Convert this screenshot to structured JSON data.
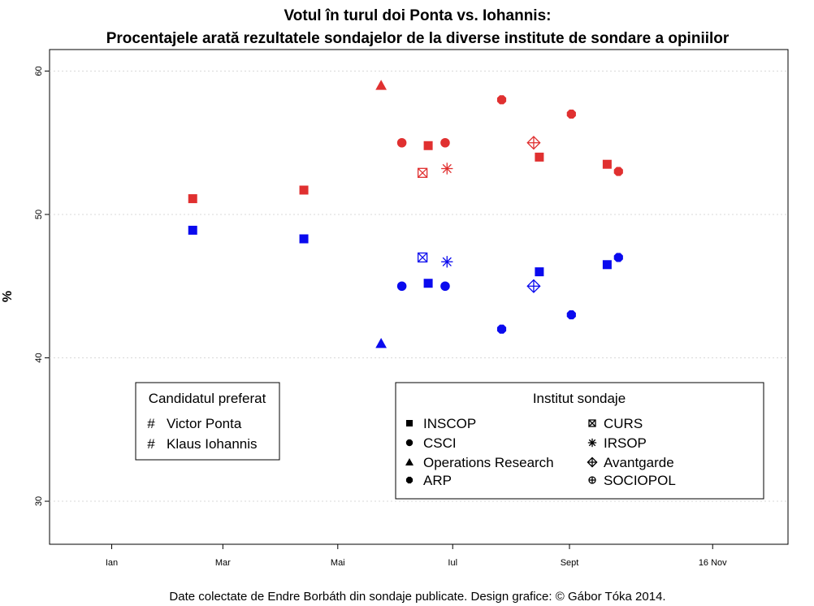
{
  "chart_data": {
    "type": "scatter",
    "title": "Votul în turul doi Ponta vs. Iohannis:",
    "subtitle": "Procentajele arată rezultatele sondajelor de la diverse institute de sondare a opiniilor",
    "ylabel": "%",
    "xlabel": "",
    "caption": "Date colectate de Endre Borbáth din sondaje publicate. Design grafice: © Gábor Tóka 2014.",
    "ylim": [
      27,
      61.5
    ],
    "yticks": [
      30,
      40,
      50,
      60
    ],
    "xlim": [
      "2013-11-29",
      "2014-12-26"
    ],
    "xticks": [
      {
        "label": "Ian",
        "date": "2014-01-01"
      },
      {
        "label": "Mar",
        "date": "2014-03-01"
      },
      {
        "label": "Mai",
        "date": "2014-05-01"
      },
      {
        "label": "Iul",
        "date": "2014-07-01"
      },
      {
        "label": "Sept",
        "date": "2014-09-01"
      },
      {
        "label": "16 Nov",
        "date": "2014-11-16"
      }
    ],
    "grid": "horizontal-dotted",
    "candidates_legend": {
      "title": "Candidatul preferat",
      "position": "bottom-left",
      "entries": [
        {
          "name": "Victor Ponta",
          "color": "#e03030",
          "glyph": "#"
        },
        {
          "name": "Klaus Iohannis",
          "color": "#0a0aee",
          "glyph": "#"
        }
      ]
    },
    "institutes_legend": {
      "title": "Institut sondaje",
      "position": "bottom-right",
      "entries": [
        {
          "name": "INSCOP",
          "shape": "square"
        },
        {
          "name": "CSCI",
          "shape": "circle"
        },
        {
          "name": "Operations Research",
          "shape": "triangle"
        },
        {
          "name": "ARP",
          "shape": "octagon"
        },
        {
          "name": "CURS",
          "shape": "square-x"
        },
        {
          "name": "IRSOP",
          "shape": "asterisk"
        },
        {
          "name": "Avantgarde",
          "shape": "diamond-plus"
        },
        {
          "name": "SOCIOPOL",
          "shape": "circle-plus"
        }
      ]
    },
    "series": [
      {
        "name": "Victor Ponta",
        "color": "#e03030",
        "points": [
          {
            "date": "2014-02-13",
            "value": 51.1,
            "institute": "INSCOP"
          },
          {
            "date": "2014-04-13",
            "value": 51.7,
            "institute": "INSCOP"
          },
          {
            "date": "2014-05-24",
            "value": 59.0,
            "institute": "Operations Research"
          },
          {
            "date": "2014-06-04",
            "value": 55.0,
            "institute": "CSCI"
          },
          {
            "date": "2014-06-15",
            "value": 52.9,
            "institute": "CURS"
          },
          {
            "date": "2014-06-18",
            "value": 54.8,
            "institute": "INSCOP"
          },
          {
            "date": "2014-06-27",
            "value": 55.0,
            "institute": "CSCI"
          },
          {
            "date": "2014-06-28",
            "value": 53.2,
            "institute": "IRSOP"
          },
          {
            "date": "2014-07-27",
            "value": 58.0,
            "institute": "ARP"
          },
          {
            "date": "2014-08-13",
            "value": 55.0,
            "institute": "Avantgarde"
          },
          {
            "date": "2014-08-16",
            "value": 54.0,
            "institute": "INSCOP"
          },
          {
            "date": "2014-09-02",
            "value": 57.0,
            "institute": "ARP"
          },
          {
            "date": "2014-09-21",
            "value": 53.5,
            "institute": "INSCOP"
          },
          {
            "date": "2014-09-27",
            "value": 53.0,
            "institute": "ARP"
          }
        ]
      },
      {
        "name": "Klaus Iohannis",
        "color": "#0a0aee",
        "points": [
          {
            "date": "2014-02-13",
            "value": 48.9,
            "institute": "INSCOP"
          },
          {
            "date": "2014-04-13",
            "value": 48.3,
            "institute": "INSCOP"
          },
          {
            "date": "2014-05-24",
            "value": 41.0,
            "institute": "Operations Research"
          },
          {
            "date": "2014-06-04",
            "value": 45.0,
            "institute": "CSCI"
          },
          {
            "date": "2014-06-15",
            "value": 47.0,
            "institute": "CURS"
          },
          {
            "date": "2014-06-18",
            "value": 45.2,
            "institute": "INSCOP"
          },
          {
            "date": "2014-06-27",
            "value": 45.0,
            "institute": "CSCI"
          },
          {
            "date": "2014-06-28",
            "value": 46.7,
            "institute": "IRSOP"
          },
          {
            "date": "2014-07-27",
            "value": 42.0,
            "institute": "ARP"
          },
          {
            "date": "2014-08-13",
            "value": 45.0,
            "institute": "Avantgarde"
          },
          {
            "date": "2014-08-16",
            "value": 46.0,
            "institute": "INSCOP"
          },
          {
            "date": "2014-09-02",
            "value": 43.0,
            "institute": "ARP"
          },
          {
            "date": "2014-09-21",
            "value": 46.5,
            "institute": "INSCOP"
          },
          {
            "date": "2014-09-27",
            "value": 47.0,
            "institute": "ARP"
          }
        ]
      }
    ]
  }
}
